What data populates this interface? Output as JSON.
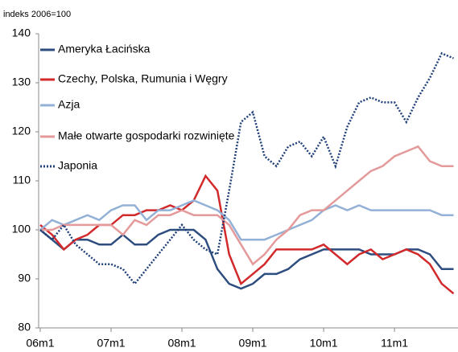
{
  "chart_data": {
    "type": "line",
    "subtitle": "indeks 2006=100",
    "categories": [
      "06m1",
      null,
      null,
      null,
      null,
      null,
      "07m1",
      null,
      null,
      null,
      null,
      null,
      "08m1",
      null,
      null,
      null,
      null,
      null,
      "09m1",
      null,
      null,
      null,
      null,
      null,
      "10m1",
      null,
      null,
      null,
      null,
      null,
      "11m1",
      null,
      null,
      null,
      null,
      null
    ],
    "series": [
      {
        "name": "Ameryka Łacińska",
        "color": "#2e4d7f",
        "dash": "solid",
        "values": [
          100,
          98,
          96,
          98,
          98,
          97,
          97,
          99,
          97,
          97,
          99,
          100,
          100,
          100,
          98,
          92,
          89,
          88,
          89,
          91,
          91,
          92,
          94,
          95,
          96,
          96,
          96,
          96,
          95,
          95,
          95,
          96,
          96,
          95,
          92,
          92
        ]
      },
      {
        "name": "Czechy, Polska, Rumunia i Węgry",
        "color": "#d2292b",
        "dash": "solid",
        "values": [
          101,
          99,
          96,
          98,
          99,
          101,
          101,
          103,
          103,
          104,
          104,
          105,
          104,
          106,
          111,
          108,
          95,
          89,
          91,
          93,
          96,
          96,
          96,
          96,
          97,
          95,
          93,
          95,
          96,
          94,
          95,
          96,
          95,
          93,
          89,
          87
        ]
      },
      {
        "name": "Azja",
        "color": "#93b1d6",
        "dash": "solid",
        "values": [
          100,
          102,
          101,
          102,
          103,
          102,
          104,
          105,
          105,
          102,
          104,
          104,
          105,
          106,
          105,
          104,
          102,
          98,
          98,
          98,
          99,
          100,
          101,
          102,
          104,
          105,
          104,
          105,
          104,
          104,
          104,
          104,
          104,
          104,
          103,
          103
        ]
      },
      {
        "name": "Małe otwarte gospodarki rozwinięte",
        "color": "#e49a9a",
        "dash": "solid",
        "values": [
          100,
          100,
          101,
          101,
          101,
          101,
          101,
          99,
          102,
          101,
          103,
          103,
          104,
          103,
          103,
          103,
          101,
          97,
          93,
          95,
          98,
          100,
          103,
          104,
          104,
          106,
          108,
          110,
          112,
          113,
          115,
          116,
          117,
          114,
          113,
          113
        ]
      },
      {
        "name": "Japonia",
        "color": "#1f3f78",
        "dash": "dotted",
        "values": [
          100,
          98,
          101,
          97,
          95,
          93,
          93,
          92,
          89,
          92,
          95,
          98,
          101,
          98,
          96,
          95,
          108,
          122,
          124,
          115,
          113,
          117,
          118,
          115,
          119,
          113,
          121,
          126,
          127,
          126,
          126,
          122,
          127,
          131,
          136,
          135
        ]
      }
    ],
    "ylim": [
      80,
      140
    ],
    "yticks": [
      80,
      90,
      100,
      110,
      120,
      130,
      140
    ],
    "grid": false,
    "legend": "upper left"
  }
}
